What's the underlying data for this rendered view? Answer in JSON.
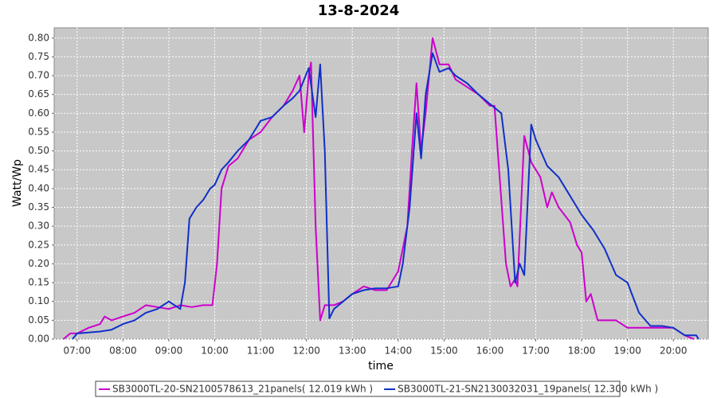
{
  "chart_data": {
    "type": "line",
    "title": "13-8-2024",
    "xlabel": "time",
    "ylabel": "Watt/Wp",
    "xlim": [
      6.5,
      20.76
    ],
    "ylim": [
      0,
      0.827
    ],
    "grid": true,
    "legend": "bottom",
    "xticks": [
      {
        "value": 7,
        "label": "07:00"
      },
      {
        "value": 8,
        "label": "08:00"
      },
      {
        "value": 9,
        "label": "09:00"
      },
      {
        "value": 10,
        "label": "10:00"
      },
      {
        "value": 11,
        "label": "11:00"
      },
      {
        "value": 12,
        "label": "12:00"
      },
      {
        "value": 13,
        "label": "13:00"
      },
      {
        "value": 14,
        "label": "14:00"
      },
      {
        "value": 15,
        "label": "15:00"
      },
      {
        "value": 16,
        "label": "16:00"
      },
      {
        "value": 17,
        "label": "17:00"
      },
      {
        "value": 18,
        "label": "18:00"
      },
      {
        "value": 19,
        "label": "19:00"
      },
      {
        "value": 20,
        "label": "20:00"
      }
    ],
    "yticks": [
      {
        "value": 0,
        "label": "0.00"
      },
      {
        "value": 0.05,
        "label": "0.05"
      },
      {
        "value": 0.1,
        "label": "0.10"
      },
      {
        "value": 0.15,
        "label": "0.15"
      },
      {
        "value": 0.2,
        "label": "0.20"
      },
      {
        "value": 0.25,
        "label": "0.25"
      },
      {
        "value": 0.3,
        "label": "0.30"
      },
      {
        "value": 0.35,
        "label": "0.35"
      },
      {
        "value": 0.4,
        "label": "0.40"
      },
      {
        "value": 0.45,
        "label": "0.45"
      },
      {
        "value": 0.5,
        "label": "0.50"
      },
      {
        "value": 0.55,
        "label": "0.55"
      },
      {
        "value": 0.6,
        "label": "0.60"
      },
      {
        "value": 0.65,
        "label": "0.65"
      },
      {
        "value": 0.7,
        "label": "0.70"
      },
      {
        "value": 0.75,
        "label": "0.75"
      },
      {
        "value": 0.8,
        "label": "0.80"
      }
    ],
    "series": [
      {
        "name": "SB3000TL-20-SN2100578613_21panels( 12.019 kWh )",
        "color": "#cc00cc",
        "x": [
          6.7,
          6.85,
          7.0,
          7.25,
          7.5,
          7.6,
          7.75,
          8.0,
          8.25,
          8.5,
          8.75,
          9.0,
          9.25,
          9.5,
          9.75,
          9.95,
          10.05,
          10.15,
          10.3,
          10.5,
          10.75,
          11.0,
          11.25,
          11.5,
          11.7,
          11.85,
          11.95,
          12.05,
          12.1,
          12.2,
          12.3,
          12.4,
          12.6,
          12.8,
          13.0,
          13.25,
          13.5,
          13.75,
          14.0,
          14.2,
          14.3,
          14.4,
          14.5,
          14.6,
          14.75,
          14.9,
          15.1,
          15.25,
          15.5,
          15.75,
          16.0,
          16.1,
          16.2,
          16.35,
          16.45,
          16.55,
          16.6,
          16.75,
          16.9,
          17.1,
          17.25,
          17.35,
          17.5,
          17.75,
          17.9,
          18.0,
          18.1,
          18.2,
          18.35,
          18.5,
          18.75,
          19.0,
          19.5,
          19.75,
          20.0,
          20.25,
          20.45
        ],
        "values": [
          0,
          0.015,
          0.015,
          0.03,
          0.04,
          0.06,
          0.05,
          0.06,
          0.07,
          0.09,
          0.085,
          0.08,
          0.09,
          0.085,
          0.09,
          0.09,
          0.2,
          0.4,
          0.46,
          0.48,
          0.53,
          0.55,
          0.59,
          0.62,
          0.66,
          0.7,
          0.55,
          0.7,
          0.735,
          0.3,
          0.05,
          0.09,
          0.09,
          0.1,
          0.12,
          0.14,
          0.13,
          0.13,
          0.18,
          0.3,
          0.5,
          0.68,
          0.5,
          0.6,
          0.8,
          0.73,
          0.73,
          0.69,
          0.67,
          0.65,
          0.62,
          0.62,
          0.45,
          0.2,
          0.14,
          0.16,
          0.14,
          0.54,
          0.47,
          0.43,
          0.35,
          0.39,
          0.35,
          0.31,
          0.25,
          0.23,
          0.1,
          0.12,
          0.05,
          0.05,
          0.05,
          0.03,
          0.03,
          0.03,
          0.03,
          0.01,
          0
        ]
      },
      {
        "name": "SB3000TL-21-SN2130032031_19panels( 12.300 kWh )",
        "color": "#1030c8",
        "x": [
          6.9,
          7.0,
          7.5,
          7.75,
          8.0,
          8.25,
          8.5,
          8.75,
          9.0,
          9.25,
          9.35,
          9.45,
          9.6,
          9.75,
          9.9,
          10.0,
          10.15,
          10.3,
          10.5,
          10.75,
          11.0,
          11.25,
          11.5,
          11.7,
          11.85,
          12.05,
          12.2,
          12.3,
          12.4,
          12.5,
          12.6,
          12.8,
          13.0,
          13.25,
          13.5,
          13.75,
          14.0,
          14.1,
          14.25,
          14.4,
          14.5,
          14.6,
          14.75,
          14.9,
          15.1,
          15.25,
          15.5,
          15.75,
          16.0,
          16.25,
          16.4,
          16.55,
          16.65,
          16.75,
          16.9,
          17.0,
          17.25,
          17.5,
          17.75,
          18.0,
          18.25,
          18.5,
          18.75,
          19.0,
          19.25,
          19.5,
          19.75,
          20.0,
          20.25,
          20.5,
          20.55
        ],
        "values": [
          0,
          0.015,
          0.02,
          0.025,
          0.04,
          0.05,
          0.07,
          0.08,
          0.1,
          0.08,
          0.15,
          0.32,
          0.35,
          0.37,
          0.4,
          0.41,
          0.45,
          0.47,
          0.5,
          0.53,
          0.58,
          0.59,
          0.62,
          0.64,
          0.66,
          0.72,
          0.59,
          0.73,
          0.5,
          0.055,
          0.08,
          0.1,
          0.12,
          0.13,
          0.135,
          0.135,
          0.14,
          0.2,
          0.35,
          0.6,
          0.48,
          0.65,
          0.76,
          0.71,
          0.72,
          0.7,
          0.68,
          0.65,
          0.625,
          0.6,
          0.45,
          0.15,
          0.2,
          0.17,
          0.57,
          0.53,
          0.46,
          0.43,
          0.38,
          0.33,
          0.29,
          0.24,
          0.17,
          0.15,
          0.07,
          0.035,
          0.035,
          0.03,
          0.01,
          0.01,
          0
        ]
      }
    ]
  }
}
